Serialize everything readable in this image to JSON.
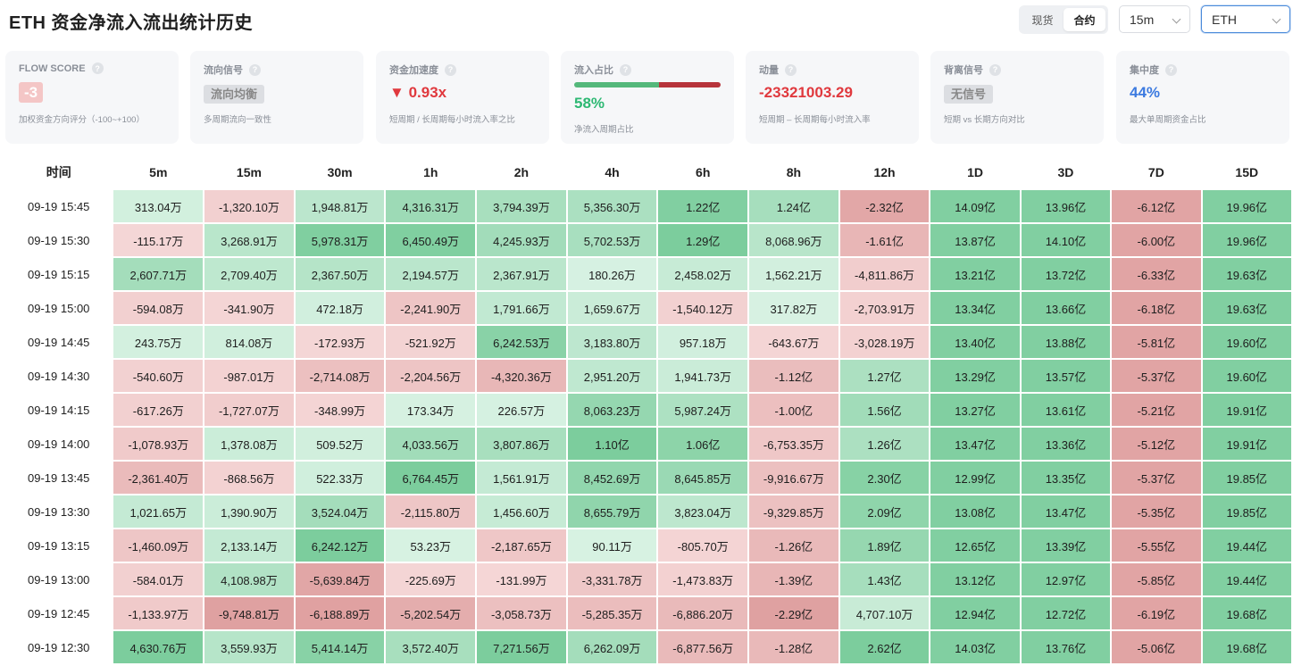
{
  "header": {
    "title": "ETH 资金净流入流出统计历史",
    "market_tabs": [
      {
        "label": "现货",
        "active": false
      },
      {
        "label": "合约",
        "active": true
      }
    ],
    "interval": "15m",
    "symbol": "ETH"
  },
  "cards": [
    {
      "label": "FLOW SCORE",
      "value": "-3",
      "sub": "加权资金方向评分（-100~+100）"
    },
    {
      "label": "流向信号",
      "value": "流向均衡",
      "sub": "多周期流向一致性"
    },
    {
      "label": "资金加速度",
      "arrow": "▼",
      "value": "0.93x",
      "sub": "短周期 / 长周期每小时流入率之比"
    },
    {
      "label": "流入占比",
      "value": "58%",
      "ratio": 0.58,
      "sub": "净流入周期占比"
    },
    {
      "label": "动量",
      "value": "-23321003.29",
      "sub": "短周期 – 长周期每小时流入率"
    },
    {
      "label": "背离信号",
      "value": "无信号",
      "sub": "短期 vs 长期方向对比"
    },
    {
      "label": "集中度",
      "value": "44%",
      "sub": "最大单周期资金占比"
    }
  ],
  "colors": {
    "negative": "#e0393e",
    "positive": "#2db873",
    "accent": "#3c7ae0",
    "cell_pos_light": "#d8f2e3",
    "cell_pos_strong": "#72c995",
    "cell_neg_light": "#f5d7d7",
    "cell_neg_strong": "#dd9b9b"
  },
  "table": {
    "columns": [
      "时间",
      "5m",
      "15m",
      "30m",
      "1h",
      "2h",
      "4h",
      "6h",
      "8h",
      "12h",
      "1D",
      "3D",
      "7D",
      "15D"
    ],
    "rows": [
      {
        "time": "09-19 15:45",
        "cells": [
          "313.04万",
          "-1,320.10万",
          "1,948.81万",
          "4,316.31万",
          "3,794.39万",
          "5,356.30万",
          "1.22亿",
          "1.24亿",
          "-2.32亿",
          "14.09亿",
          "13.96亿",
          "-6.12亿",
          "19.96亿"
        ]
      },
      {
        "time": "09-19 15:30",
        "cells": [
          "-115.17万",
          "3,268.91万",
          "5,978.31万",
          "6,450.49万",
          "4,245.93万",
          "5,702.53万",
          "1.29亿",
          "8,068.96万",
          "-1.61亿",
          "13.87亿",
          "14.10亿",
          "-6.00亿",
          "19.96亿"
        ]
      },
      {
        "time": "09-19 15:15",
        "cells": [
          "2,607.71万",
          "2,709.40万",
          "2,367.50万",
          "2,194.57万",
          "2,367.91万",
          "180.26万",
          "2,458.02万",
          "1,562.21万",
          "-4,811.86万",
          "13.21亿",
          "13.72亿",
          "-6.33亿",
          "19.63亿"
        ]
      },
      {
        "time": "09-19 15:00",
        "cells": [
          "-594.08万",
          "-341.90万",
          "472.18万",
          "-2,241.90万",
          "1,791.66万",
          "1,659.67万",
          "-1,540.12万",
          "317.82万",
          "-2,703.91万",
          "13.34亿",
          "13.66亿",
          "-6.18亿",
          "19.63亿"
        ]
      },
      {
        "time": "09-19 14:45",
        "cells": [
          "243.75万",
          "814.08万",
          "-172.93万",
          "-521.92万",
          "6,242.53万",
          "3,183.80万",
          "957.18万",
          "-643.67万",
          "-3,028.19万",
          "13.40亿",
          "13.88亿",
          "-5.81亿",
          "19.60亿"
        ]
      },
      {
        "time": "09-19 14:30",
        "cells": [
          "-540.60万",
          "-987.01万",
          "-2,714.08万",
          "-2,204.56万",
          "-4,320.36万",
          "2,951.20万",
          "1,941.73万",
          "-1.12亿",
          "1.27亿",
          "13.29亿",
          "13.57亿",
          "-5.37亿",
          "19.60亿"
        ]
      },
      {
        "time": "09-19 14:15",
        "cells": [
          "-617.26万",
          "-1,727.07万",
          "-348.99万",
          "173.34万",
          "226.57万",
          "8,063.23万",
          "5,987.24万",
          "-1.00亿",
          "1.56亿",
          "13.27亿",
          "13.61亿",
          "-5.21亿",
          "19.91亿"
        ]
      },
      {
        "time": "09-19 14:00",
        "cells": [
          "-1,078.93万",
          "1,378.08万",
          "509.52万",
          "4,033.56万",
          "3,807.86万",
          "1.10亿",
          "1.06亿",
          "-6,753.35万",
          "1.26亿",
          "13.47亿",
          "13.36亿",
          "-5.12亿",
          "19.91亿"
        ]
      },
      {
        "time": "09-19 13:45",
        "cells": [
          "-2,361.40万",
          "-868.56万",
          "522.33万",
          "6,764.45万",
          "1,561.91万",
          "8,452.69万",
          "8,645.85万",
          "-9,916.67万",
          "2.30亿",
          "12.99亿",
          "13.35亿",
          "-5.37亿",
          "19.85亿"
        ]
      },
      {
        "time": "09-19 13:30",
        "cells": [
          "1,021.65万",
          "1,390.90万",
          "3,524.04万",
          "-2,115.80万",
          "1,456.60万",
          "8,655.79万",
          "3,823.04万",
          "-9,329.85万",
          "2.09亿",
          "13.08亿",
          "13.47亿",
          "-5.35亿",
          "19.85亿"
        ]
      },
      {
        "time": "09-19 13:15",
        "cells": [
          "-1,460.09万",
          "2,133.14万",
          "6,242.12万",
          "53.23万",
          "-2,187.65万",
          "90.11万",
          "-805.70万",
          "-1.26亿",
          "1.89亿",
          "12.65亿",
          "13.39亿",
          "-5.55亿",
          "19.44亿"
        ]
      },
      {
        "time": "09-19 13:00",
        "cells": [
          "-584.01万",
          "4,108.98万",
          "-5,639.84万",
          "-225.69万",
          "-131.99万",
          "-3,331.78万",
          "-1,473.83万",
          "-1.39亿",
          "1.43亿",
          "13.12亿",
          "12.97亿",
          "-5.85亿",
          "19.44亿"
        ]
      },
      {
        "time": "09-19 12:45",
        "cells": [
          "-1,133.97万",
          "-9,748.81万",
          "-6,188.89万",
          "-5,202.54万",
          "-3,058.73万",
          "-5,285.35万",
          "-6,886.20万",
          "-2.29亿",
          "4,707.10万",
          "12.94亿",
          "12.72亿",
          "-6.19亿",
          "19.68亿"
        ]
      },
      {
        "time": "09-19 12:30",
        "cells": [
          "4,630.76万",
          "3,559.93万",
          "5,414.14万",
          "3,572.40万",
          "7,271.56万",
          "6,262.09万",
          "-6,877.56万",
          "-1.28亿",
          "2.62亿",
          "14.03亿",
          "13.76亿",
          "-5.06亿",
          "19.68亿"
        ]
      }
    ]
  }
}
